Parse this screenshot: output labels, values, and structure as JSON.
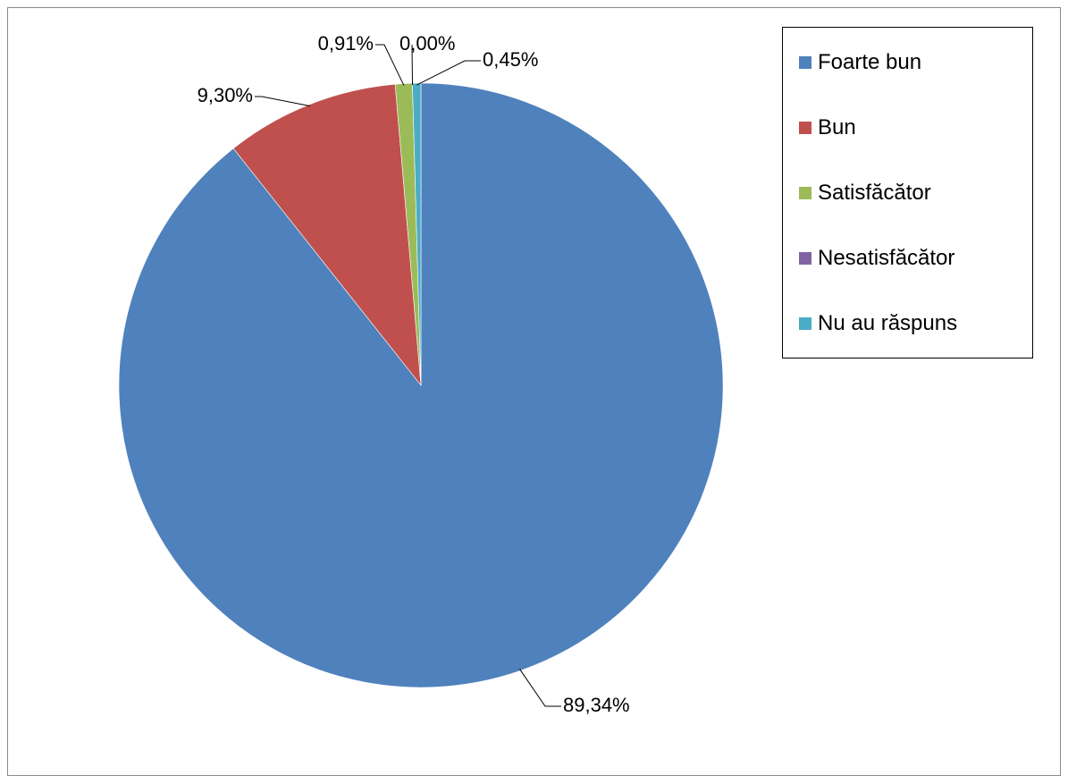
{
  "chart_data": {
    "type": "pie",
    "title": "",
    "categories": [
      "Foarte bun",
      "Bun",
      "Satisfăcător",
      "Nesatisfăcător",
      "Nu au răspuns"
    ],
    "values": [
      89.34,
      9.3,
      0.91,
      0.0,
      0.45
    ],
    "value_labels": [
      "89,34%",
      "9,30%",
      "0,91%",
      "0,00%",
      "0,45%"
    ],
    "colors": [
      "#4f81bd",
      "#c0504d",
      "#9bbb59",
      "#8064a2",
      "#4bacc6"
    ],
    "legend_placement": "right",
    "start_angle": "12 o'clock",
    "direction": "clockwise"
  },
  "legend": {
    "items": [
      {
        "label": "Foarte bun",
        "color": "#4f81bd"
      },
      {
        "label": "Bun",
        "color": "#c0504d"
      },
      {
        "label": "Satisfăcător",
        "color": "#9bbb59"
      },
      {
        "label": "Nesatisfăcător",
        "color": "#8064a2"
      },
      {
        "label": "Nu au răspuns",
        "color": "#4bacc6"
      }
    ]
  }
}
